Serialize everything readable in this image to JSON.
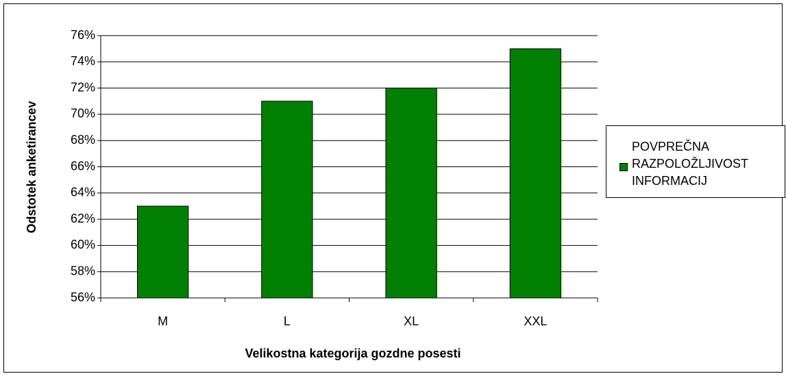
{
  "chart_data": {
    "type": "bar",
    "categories": [
      "M",
      "L",
      "XL",
      "XXL"
    ],
    "series": [
      {
        "name": "POVPREČNA RAZPOLOŽLJIVOST INFORMACIJ",
        "color": "#008000",
        "values": [
          63,
          71,
          72,
          75
        ]
      }
    ],
    "x_label": "Velikostna kategorija gozdne posesti",
    "y_label": "Odstotek anketirancev",
    "ylim": [
      56,
      76
    ],
    "yticks": [
      {
        "value": 56,
        "label": "56%"
      },
      {
        "value": 58,
        "label": "58%"
      },
      {
        "value": 60,
        "label": "60%"
      },
      {
        "value": 62,
        "label": "62%"
      },
      {
        "value": 64,
        "label": "64%"
      },
      {
        "value": 66,
        "label": "66%"
      },
      {
        "value": 68,
        "label": "68%"
      },
      {
        "value": 70,
        "label": "70%"
      },
      {
        "value": 72,
        "label": "72%"
      },
      {
        "value": 74,
        "label": "74%"
      },
      {
        "value": 76,
        "label": "76%"
      }
    ],
    "grid": true,
    "legend": "right"
  }
}
